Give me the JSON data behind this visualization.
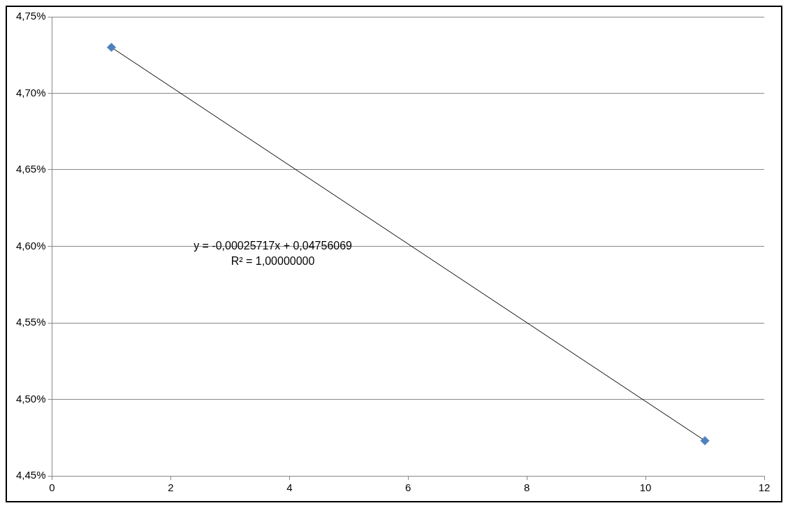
{
  "chart_data": {
    "type": "scatter",
    "x": [
      1,
      11
    ],
    "series": [
      {
        "color": "#4f81bd",
        "marker": "diamond",
        "values": [
          4.73,
          4.473
        ]
      },
      {
        "type": "line",
        "color": "#000000",
        "marker": "none",
        "x": [
          1,
          11
        ],
        "values": [
          4.73,
          4.473
        ]
      }
    ],
    "xlim": [
      0,
      12
    ],
    "xticks": [
      0,
      2,
      4,
      6,
      8,
      10,
      12
    ],
    "ylim": [
      4.45,
      4.75
    ],
    "yticks": [
      {
        "value": 4.45,
        "label": "4,45%"
      },
      {
        "value": 4.5,
        "label": "4,50%"
      },
      {
        "value": 4.55,
        "label": "4,55%"
      },
      {
        "value": 4.6,
        "label": "4,60%"
      },
      {
        "value": 4.65,
        "label": "4,65%"
      },
      {
        "value": 4.7,
        "label": "4,70%"
      },
      {
        "value": 4.75,
        "label": "4,75%"
      }
    ],
    "grid": "y",
    "legend": false,
    "annotations": [
      "y = -0,00025717x + 0,04756069",
      "R² = 1,00000000"
    ]
  }
}
